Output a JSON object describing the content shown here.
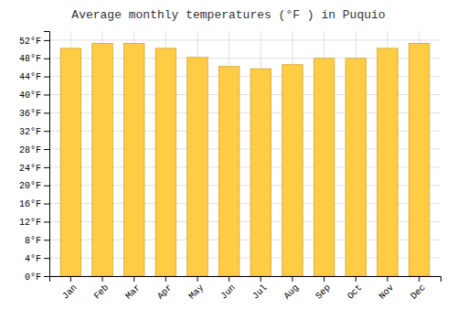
{
  "chart_data": {
    "type": "bar",
    "title": "Average monthly temperatures (°F ) in Puquio",
    "categories": [
      "Jan",
      "Feb",
      "Mar",
      "Apr",
      "May",
      "Jun",
      "Jul",
      "Aug",
      "Sep",
      "Oct",
      "Nov",
      "Dec"
    ],
    "values": [
      50.2,
      51.3,
      51.3,
      50.2,
      48.2,
      46.2,
      45.7,
      46.6,
      48.0,
      48.0,
      50.2,
      51.3
    ],
    "color": "#FFCC44",
    "ylim": [
      0,
      54
    ],
    "yticks": [
      {
        "value": 0,
        "label": "0°F"
      },
      {
        "value": 4,
        "label": "4°F"
      },
      {
        "value": 8,
        "label": "8°F"
      },
      {
        "value": 12,
        "label": "12°F"
      },
      {
        "value": 16,
        "label": "16°F"
      },
      {
        "value": 20,
        "label": "20°F"
      },
      {
        "value": 24,
        "label": "24°F"
      },
      {
        "value": 28,
        "label": "28°F"
      },
      {
        "value": 32,
        "label": "32°F"
      },
      {
        "value": 36,
        "label": "36°F"
      },
      {
        "value": 40,
        "label": "40°F"
      },
      {
        "value": 44,
        "label": "44°F"
      },
      {
        "value": 48,
        "label": "48°F"
      },
      {
        "value": 52,
        "label": "52°F"
      }
    ],
    "grid": true
  }
}
